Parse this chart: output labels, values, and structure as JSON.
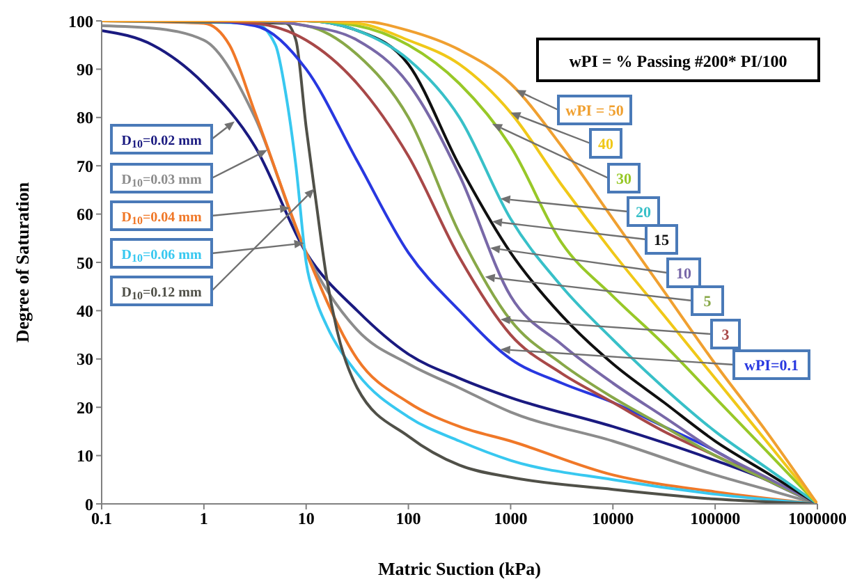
{
  "chart_data": {
    "type": "line",
    "xlabel": "Matric Suction (kPa)",
    "ylabel": "Degree of Saturation",
    "log": "x",
    "marker": "none",
    "xlim": [
      0.1,
      1000000
    ],
    "xticks": [
      0.1,
      1,
      10,
      100,
      1000,
      10000,
      100000,
      1000000
    ],
    "ylim": [
      0,
      100
    ],
    "yticks": [
      0,
      10,
      20,
      30,
      40,
      50,
      60,
      70,
      80,
      90,
      100
    ],
    "annotations": [
      "wPI = % Passing #200* PI/100"
    ],
    "series": [
      {
        "name": "D$_{10}$=0.02 mm",
        "color": "#1a1a80",
        "x": [
          0.1,
          0.316,
          1,
          3.16,
          10,
          31.6,
          100,
          316,
          1000,
          10000,
          100000,
          316228,
          1000000
        ],
        "values": [
          98,
          95,
          87,
          74,
          52,
          40,
          31,
          26,
          22,
          16,
          9,
          5,
          0
        ]
      },
      {
        "name": "D$_{10}$=0.03 mm",
        "color": "#8c8c8c",
        "x": [
          0.1,
          0.316,
          1,
          3.16,
          10,
          31.6,
          100,
          316,
          1000,
          10000,
          100000,
          316228,
          1000000
        ],
        "values": [
          99,
          98.5,
          96,
          80,
          52,
          36,
          29,
          24,
          19,
          13,
          6,
          3,
          0
        ]
      },
      {
        "name": "D$_{10}$=0.04 mm",
        "color": "#f07828",
        "x": [
          0.1,
          1,
          1.78,
          3.16,
          10,
          31.6,
          100,
          316,
          1000,
          10000,
          100000,
          1000000
        ],
        "values": [
          100,
          99.5,
          95,
          81,
          52,
          30,
          21,
          16,
          13,
          6,
          2.5,
          0
        ]
      },
      {
        "name": "D$_{10}$=0.06 mm",
        "color": "#38c8f0",
        "x": [
          0.1,
          3.16,
          5.01,
          6.31,
          7.94,
          10,
          12.6,
          15.8,
          31.6,
          100,
          316,
          1000,
          10000,
          100000,
          1000000
        ],
        "values": [
          100,
          99.5,
          95,
          85,
          70,
          50,
          42,
          37,
          27,
          18,
          13,
          9,
          5,
          2,
          0
        ]
      },
      {
        "name": "D$_{10}$=0.12 mm",
        "color": "#505048",
        "x": [
          0.1,
          6.31,
          7.94,
          10,
          12.6,
          15.8,
          20,
          31.6,
          100,
          316,
          1000,
          10000,
          100000,
          1000000
        ],
        "values": [
          100,
          99.5,
          96,
          78,
          62,
          47,
          36,
          24,
          14,
          8,
          5.5,
          3,
          1,
          0
        ]
      },
      {
        "name": "wPI=0.1",
        "color": "#2838e0",
        "x": [
          0.1,
          1,
          3.16,
          10,
          31.6,
          100,
          316,
          1000,
          3162,
          10000,
          31623,
          100000,
          316228,
          1000000
        ],
        "values": [
          100,
          100,
          99,
          90,
          71,
          52,
          40,
          30,
          25,
          21,
          16,
          11,
          5,
          0
        ]
      },
      {
        "name": "3",
        "color": "#a84848",
        "x": [
          0.1,
          1,
          3.16,
          10,
          31.6,
          100,
          316,
          1000,
          3162,
          10000,
          31623,
          100000,
          316228,
          1000000
        ],
        "values": [
          100,
          100,
          99.5,
          96,
          87,
          72,
          51,
          35,
          27,
          21,
          15,
          10,
          5,
          0
        ]
      },
      {
        "name": "5",
        "color": "#88a848",
        "x": [
          0.1,
          1,
          3.16,
          10,
          31.6,
          100,
          316,
          1000,
          3162,
          10000,
          31623,
          100000,
          316228,
          1000000
        ],
        "values": [
          100,
          100,
          100,
          99,
          93,
          80,
          56,
          38,
          29,
          22,
          16,
          10,
          5,
          0
        ]
      },
      {
        "name": "10",
        "color": "#7868a8",
        "x": [
          0.1,
          1,
          3.16,
          10,
          31.6,
          100,
          316,
          1000,
          3162,
          10000,
          31623,
          100000,
          316228,
          1000000
        ],
        "values": [
          100,
          100,
          100,
          99,
          96,
          87,
          68,
          43,
          33,
          25,
          18,
          11,
          5.5,
          0
        ]
      },
      {
        "name": "15",
        "color": "#101010",
        "x": [
          0.1,
          1,
          3.16,
          10,
          31.6,
          100,
          316,
          1000,
          3162,
          10000,
          31623,
          100000,
          316228,
          1000000
        ],
        "values": [
          100,
          100,
          100,
          100,
          98,
          91,
          70,
          52,
          39,
          29,
          21,
          13,
          6.5,
          0
        ]
      },
      {
        "name": "20",
        "color": "#38c0c8",
        "x": [
          0.1,
          1,
          3.16,
          10,
          31.6,
          100,
          316,
          1000,
          3162,
          10000,
          31623,
          100000,
          316228,
          1000000
        ],
        "values": [
          100,
          100,
          100,
          100,
          98,
          92,
          80,
          59,
          45,
          34,
          24,
          15,
          7.5,
          0
        ]
      },
      {
        "name": "30",
        "color": "#98c828",
        "x": [
          3.16,
          10,
          31.6,
          100,
          316,
          1000,
          3162,
          10000,
          31623,
          100000,
          316228,
          1000000
        ],
        "values": [
          100,
          100,
          99,
          95,
          87,
          74,
          54,
          43,
          33,
          22,
          11,
          0
        ]
      },
      {
        "name": "40",
        "color": "#f0c818",
        "x": [
          0.1,
          1,
          3.16,
          10,
          31.6,
          100,
          316,
          1000,
          3162,
          10000,
          31623,
          100000,
          316228,
          1000000
        ],
        "values": [
          100,
          100,
          100,
          100,
          99.5,
          96,
          91,
          81,
          66,
          52,
          39,
          26,
          13,
          0
        ]
      },
      {
        "name": "wPI = 50",
        "color": "#f0a030",
        "x": [
          0.1,
          1,
          3.16,
          10,
          31.6,
          100,
          316,
          1000,
          3162,
          10000,
          31623,
          100000,
          316228,
          1000000
        ],
        "values": [
          100,
          100,
          100,
          100,
          100,
          98,
          94,
          87,
          74,
          59,
          44,
          29,
          15,
          0
        ]
      }
    ]
  }
}
